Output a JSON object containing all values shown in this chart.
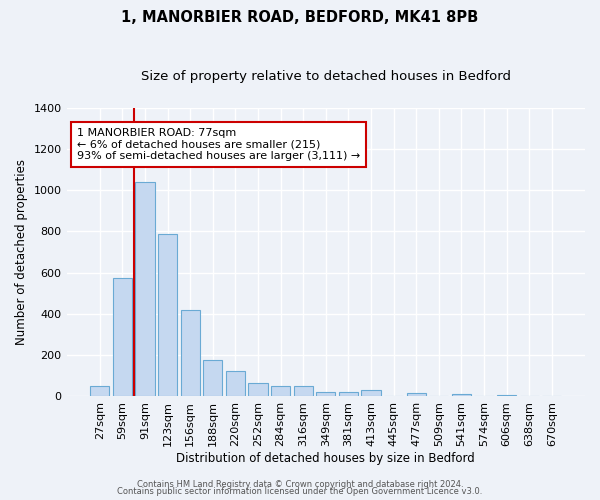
{
  "title": "1, MANORBIER ROAD, BEDFORD, MK41 8PB",
  "subtitle": "Size of property relative to detached houses in Bedford",
  "xlabel": "Distribution of detached houses by size in Bedford",
  "ylabel": "Number of detached properties",
  "bar_labels": [
    "27sqm",
    "59sqm",
    "91sqm",
    "123sqm",
    "156sqm",
    "188sqm",
    "220sqm",
    "252sqm",
    "284sqm",
    "316sqm",
    "349sqm",
    "381sqm",
    "413sqm",
    "445sqm",
    "477sqm",
    "509sqm",
    "541sqm",
    "574sqm",
    "606sqm",
    "638sqm",
    "670sqm"
  ],
  "bar_values": [
    50,
    575,
    1040,
    790,
    420,
    175,
    125,
    65,
    50,
    50,
    20,
    20,
    30,
    0,
    15,
    0,
    10,
    0,
    5,
    0,
    2
  ],
  "bar_color": "#c5d8f0",
  "bar_edge_color": "#6aaad4",
  "vline_color": "#cc0000",
  "ylim": [
    0,
    1400
  ],
  "yticks": [
    0,
    200,
    400,
    600,
    800,
    1000,
    1200,
    1400
  ],
  "annotation_title": "1 MANORBIER ROAD: 77sqm",
  "annotation_line1": "← 6% of detached houses are smaller (215)",
  "annotation_line2": "93% of semi-detached houses are larger (3,111) →",
  "annotation_box_color": "#ffffff",
  "annotation_box_edge": "#cc0000",
  "footer1": "Contains HM Land Registry data © Crown copyright and database right 2024.",
  "footer2": "Contains public sector information licensed under the Open Government Licence v3.0.",
  "bg_color": "#eef2f8",
  "grid_color": "#ffffff",
  "title_fontsize": 10.5,
  "subtitle_fontsize": 9.5
}
